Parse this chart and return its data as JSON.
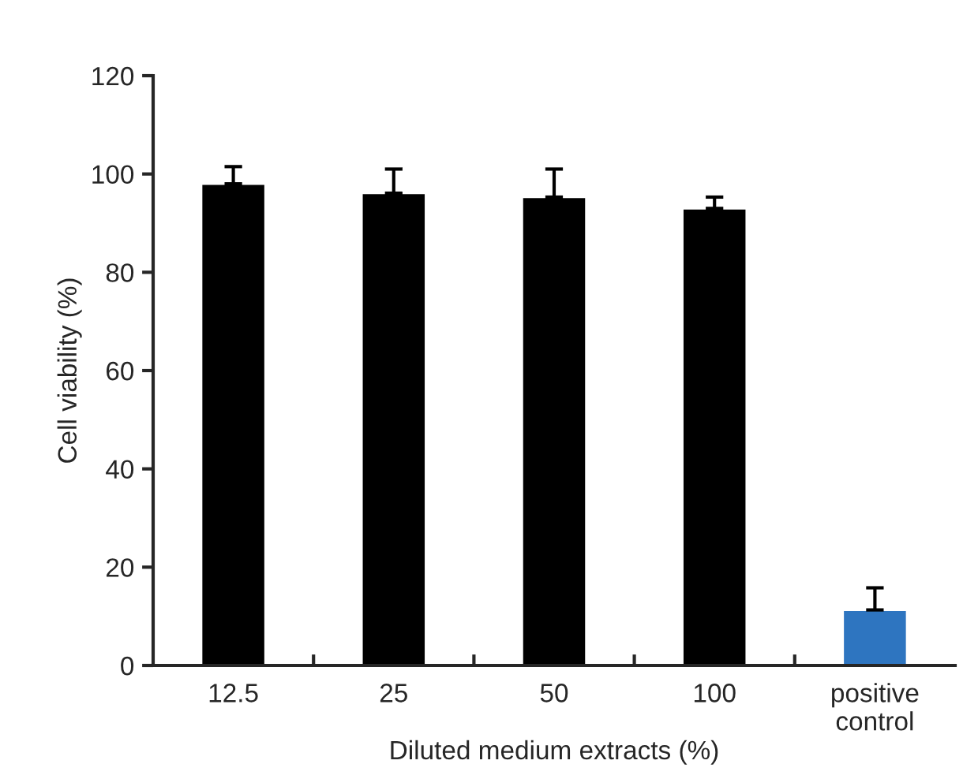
{
  "chart_data": {
    "type": "bar",
    "xlabel": "Diluted medium extracts (%)",
    "ylabel": "Cell viability (%)",
    "categories": [
      "12.5",
      "25",
      "50",
      "100",
      "positive\ncontrol"
    ],
    "values": [
      98,
      96.1,
      95.3,
      93,
      11.3
    ],
    "colors": [
      "#000000",
      "#000000",
      "#000000",
      "#000000",
      "#2e75c0"
    ],
    "errors": [
      [
        98,
        101.5
      ],
      [
        96.1,
        101
      ],
      [
        95.3,
        101
      ],
      [
        93,
        95.3
      ],
      [
        11.3,
        15.8
      ]
    ],
    "ylim": [
      0,
      120
    ],
    "yticks": [
      0,
      20,
      40,
      60,
      80,
      100,
      120
    ],
    "grid": false,
    "legend": false
  }
}
